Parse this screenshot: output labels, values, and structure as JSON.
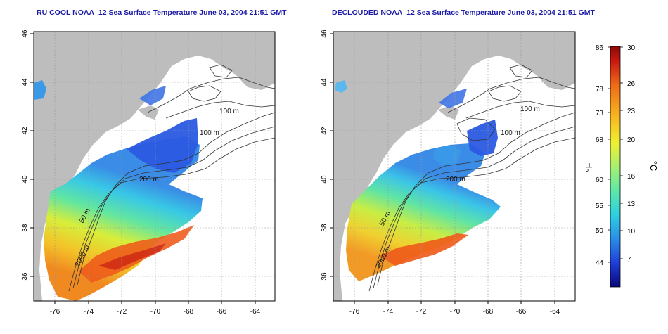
{
  "panels": [
    {
      "title": "RU COOL NOAA–12 Sea Surface Temperature June 03, 2004 21:51 GMT",
      "variant": "cool",
      "contour_labels": [
        "100 m",
        "100 m",
        "200 m",
        "50 m",
        "2000 m"
      ]
    },
    {
      "title": "DECLOUDED NOAA–12 Sea Surface Temperature June 03, 2004 21:51 GMT",
      "variant": "declouded",
      "contour_labels": [
        "100 m",
        "100 m",
        "200 m",
        "50 m",
        "2000 m"
      ]
    }
  ],
  "axes": {
    "lat_ticks": [
      "36",
      "38",
      "40",
      "42",
      "44",
      "46"
    ],
    "lon_ticks": [
      "-76",
      "-74",
      "-72",
      "-70",
      "-68",
      "-66",
      "-64"
    ]
  },
  "colorbar": {
    "fahrenheit_ticks": [
      "86",
      "78",
      "73",
      "68",
      "60",
      "55",
      "50",
      "44"
    ],
    "celsius_ticks": [
      "30",
      "26",
      "23",
      "20",
      "16",
      "13",
      "10",
      "7"
    ],
    "fahrenheit_unit": "°F",
    "celsius_unit": "°C",
    "colors": [
      "#08087a",
      "#1f3fd8",
      "#2a8ee8",
      "#2ed0e0",
      "#5ee8a8",
      "#a8f070",
      "#f0f030",
      "#f6b020",
      "#ee6a18",
      "#c81810",
      "#8a0a08"
    ]
  },
  "colors": {
    "land": "#bdbdbd",
    "title": "#1a1aa6",
    "frame": "#000000"
  }
}
